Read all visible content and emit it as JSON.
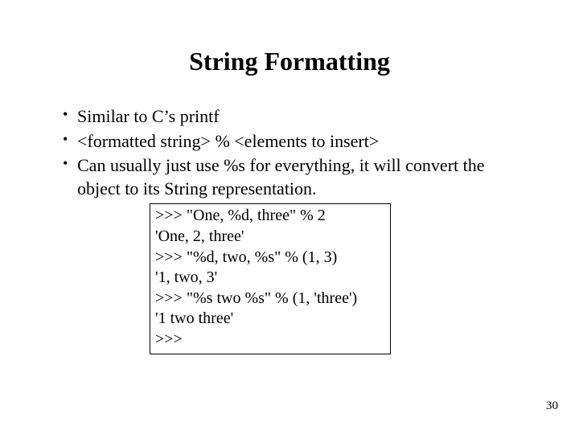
{
  "slide": {
    "title": "String Formatting",
    "title_fontsize": 32,
    "title_fontweight": "bold",
    "bullets": [
      "Similar to C’s printf",
      "<formatted string> % <elements to insert>",
      "Can usually just use %s for everything, it will convert the object to its String representation."
    ],
    "bullet_fontsize": 22,
    "code_lines": [
      ">>> \"One, %d, three\" % 2",
      "'One, 2, three'",
      ">>> \"%d, two, %s\" % (1, 3)",
      "'1, two, 3'",
      ">>> \"%s two %s\" % (1, 'three')",
      "'1 two three'",
      ">>>"
    ],
    "code_fontsize": 20,
    "code_border_color": "#000000",
    "page_number": "30",
    "page_number_fontsize": 15,
    "background_color": "#ffffff",
    "text_color": "#000000",
    "font_family": "Times New Roman"
  }
}
